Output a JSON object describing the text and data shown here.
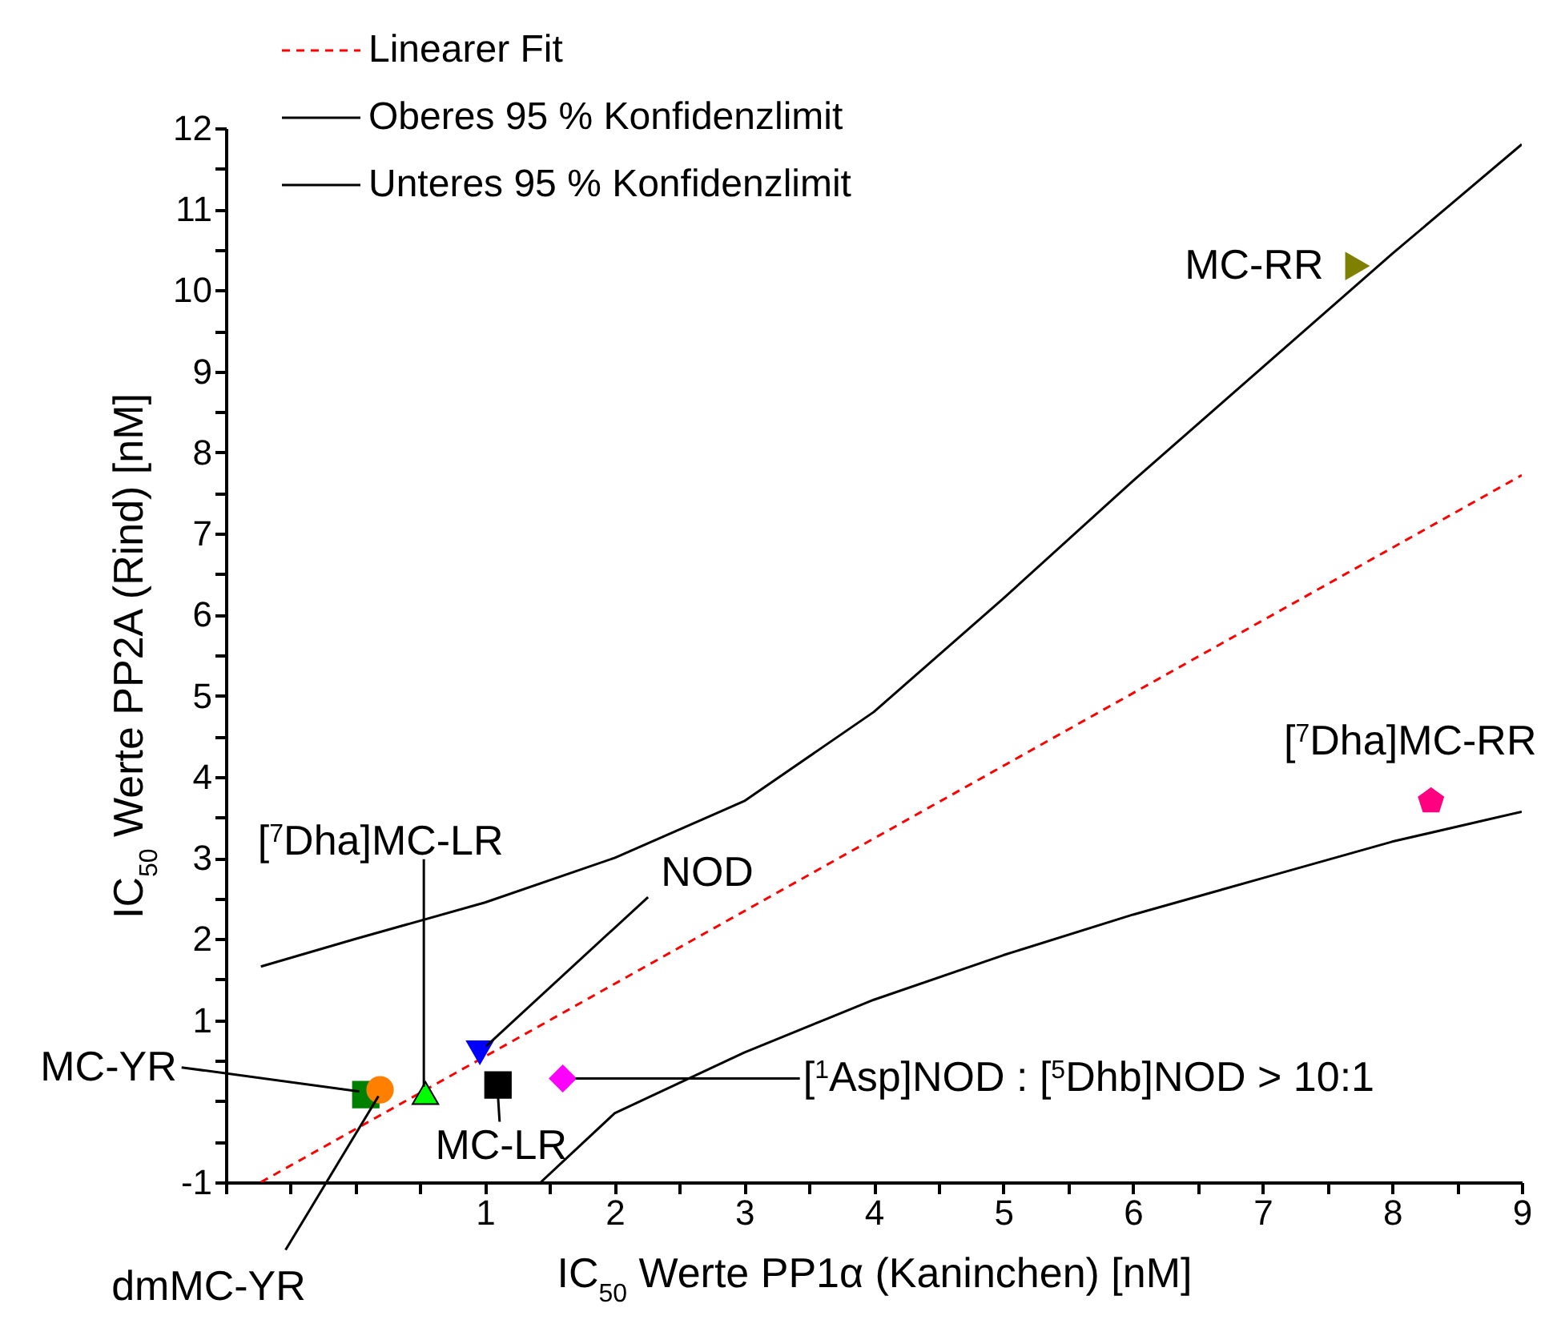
{
  "chart_data": {
    "type": "scatter",
    "xlabel": "IC$_{50}$ Werte PP1α (Kaninchen) [nM]",
    "ylabel": "IC$_{50}$ Werte PP2A (Rind) [nM]",
    "xlim": [
      -1,
      9
    ],
    "ylim": [
      -1,
      12
    ],
    "xticks": [
      {
        "value": -1,
        "label": null
      },
      {
        "value": -0.5,
        "label": null
      },
      {
        "value": 0,
        "label": null
      },
      {
        "value": 0.5,
        "label": null
      },
      1,
      {
        "value": 1.5,
        "label": null
      },
      2,
      {
        "value": 2.5,
        "label": null
      },
      3,
      {
        "value": 3.5,
        "label": null
      },
      4,
      {
        "value": 4.5,
        "label": null
      },
      5,
      {
        "value": 5.5,
        "label": null
      },
      6,
      {
        "value": 6.5,
        "label": null
      },
      7,
      {
        "value": 7.5,
        "label": null
      },
      8,
      {
        "value": 8.5,
        "label": null
      },
      9
    ],
    "yticks": [
      -1,
      {
        "value": -0.5,
        "label": null
      },
      {
        "value": 0,
        "label": null
      },
      {
        "value": 0.5,
        "label": null
      },
      1,
      {
        "value": 1.5,
        "label": null
      },
      2,
      {
        "value": 2.5,
        "label": null
      },
      3,
      {
        "value": 3.5,
        "label": null
      },
      4,
      {
        "value": 4.5,
        "label": null
      },
      5,
      {
        "value": 5.5,
        "label": null
      },
      6,
      {
        "value": 6.5,
        "label": null
      },
      7,
      {
        "value": 7.5,
        "label": null
      },
      8,
      {
        "value": 8.5,
        "label": null
      },
      9,
      {
        "value": 9.5,
        "label": null
      },
      10,
      {
        "value": 10.5,
        "label": null
      },
      11,
      {
        "value": 11.5,
        "label": null
      },
      12
    ],
    "grid": false,
    "legend": "top left",
    "annotations": [
      {
        "text": "MC-YR",
        "x": 0.08,
        "y": 0.08
      },
      {
        "text": "dmMC-YR",
        "x": 0.19,
        "y": 0.14
      },
      {
        "text": "[$^{7}$Dha]MC-LR",
        "x": 0.54,
        "y": 0.1
      },
      {
        "text": "NOD",
        "x": 0.96,
        "y": 0.6
      },
      {
        "text": "MC-LR",
        "x": 1.1,
        "y": 0.2
      },
      {
        "text": "[$^{1}$Asp]NOD : [$^{5}$Dhb]NOD > 10:1",
        "x": 1.6,
        "y": 0.28
      },
      {
        "text": "MC-RR",
        "x": 7.73,
        "y": 10.3
      },
      {
        "text": "[$^{7}$Dha]MC-RR",
        "x": 8.3,
        "y": 3.7
      }
    ],
    "series": [
      {
        "type": "line",
        "name": "Linearer Fit",
        "color": "#ff0000",
        "line_style": "dashed",
        "marker": "none",
        "x": [
          -0.73,
          9
        ],
        "values": [
          -1,
          7.72
        ]
      },
      {
        "type": "line",
        "name": "Oberes 95 % Konfidenzlimit",
        "color": "#000000",
        "line_style": "solid",
        "marker": "none",
        "x": [
          -0.73,
          0,
          1,
          2,
          3,
          4,
          5,
          6,
          7,
          8,
          9
        ],
        "values": [
          1.66,
          2.0,
          2.45,
          3.0,
          3.7,
          4.8,
          6.2,
          7.65,
          9.05,
          10.45,
          11.8
        ]
      },
      {
        "type": "line",
        "name": "Unteres 95 % Konfidenzlimit",
        "color": "#000000",
        "line_style": "solid",
        "marker": "none",
        "x": [
          1.43,
          2,
          3,
          4,
          5,
          6,
          7,
          8,
          9
        ],
        "values": [
          -1,
          -0.15,
          0.6,
          1.25,
          1.8,
          2.3,
          2.75,
          3.2,
          3.57
        ]
      },
      {
        "color": "#008000",
        "marker": "square",
        "x": [
          0.08
        ],
        "values": [
          0.08
        ]
      },
      {
        "color": "#ff8000",
        "marker": "circle",
        "x": [
          0.19
        ],
        "values": [
          0.14
        ]
      },
      {
        "color": "#00ff00",
        "marker": "triangle",
        "x": [
          0.54
        ],
        "values": [
          0.1
        ]
      },
      {
        "color": "#0000ff",
        "marker": "triangle-down",
        "x": [
          0.96
        ],
        "values": [
          0.6
        ]
      },
      {
        "color": "#000000",
        "marker": "square",
        "x": [
          1.1
        ],
        "values": [
          0.2
        ]
      },
      {
        "color": "#ff00ff",
        "marker": "diamond",
        "x": [
          1.6
        ],
        "values": [
          0.28
        ]
      },
      {
        "color": "#808000",
        "marker": "triangle-right",
        "x": [
          7.73
        ],
        "values": [
          10.3
        ]
      },
      {
        "color": "#ff0080",
        "x": [
          8.3
        ],
        "values": [
          3.7
        ]
      }
    ]
  }
}
